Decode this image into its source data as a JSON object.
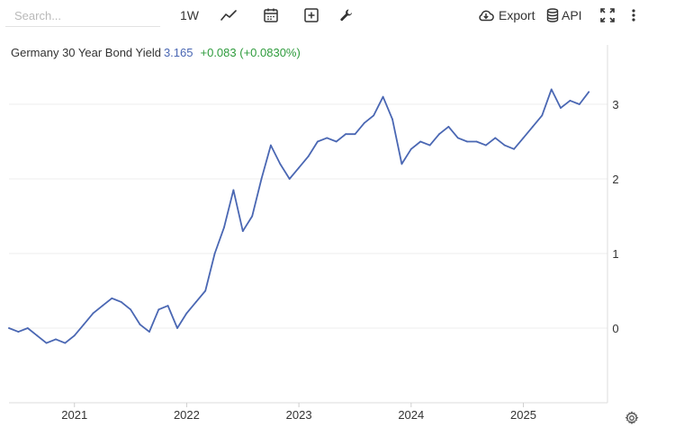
{
  "toolbar": {
    "search_placeholder": "Search...",
    "interval_label": "1W",
    "chart_type_icon": "line-chart-icon",
    "calendar_icon": "calendar-icon",
    "compare_icon": "add-box-icon",
    "settings_icon": "wrench-icon",
    "export_label": "Export",
    "export_icon": "cloud-download-icon",
    "api_label": "API",
    "api_icon": "database-icon",
    "fullscreen_icon": "fullscreen-icon",
    "more_icon": "more-vertical-icon"
  },
  "legend": {
    "name": "Germany 30 Year Bond Yield",
    "value": "3.165",
    "change": "+0.083 (+0.0830%)",
    "value_color": "#4a67b3",
    "change_color": "#2e9b3c"
  },
  "footer": {
    "gear_icon": "gear-icon"
  },
  "chart_data": {
    "type": "line",
    "title": "",
    "xlabel": "",
    "ylabel": "",
    "x_tick_labels": [
      "2021",
      "2022",
      "2023",
      "2024",
      "2025"
    ],
    "y_tick_labels": [
      "0",
      "1",
      "2",
      "3"
    ],
    "ylim": [
      -1,
      3.4
    ],
    "xlim": [
      "2020-06",
      "2025-10"
    ],
    "grid": "horizontal",
    "line_color": "#4a67b3",
    "series": [
      {
        "name": "Germany 30 Year Bond Yield",
        "x": [
          "2020-06",
          "2020-07",
          "2020-08",
          "2020-09",
          "2020-10",
          "2020-11",
          "2020-12",
          "2021-01",
          "2021-02",
          "2021-03",
          "2021-04",
          "2021-05",
          "2021-06",
          "2021-07",
          "2021-08",
          "2021-09",
          "2021-10",
          "2021-11",
          "2021-12",
          "2022-01",
          "2022-02",
          "2022-03",
          "2022-04",
          "2022-05",
          "2022-06",
          "2022-07",
          "2022-08",
          "2022-09",
          "2022-10",
          "2022-11",
          "2022-12",
          "2023-01",
          "2023-02",
          "2023-03",
          "2023-04",
          "2023-05",
          "2023-06",
          "2023-07",
          "2023-08",
          "2023-09",
          "2023-10",
          "2023-11",
          "2023-12",
          "2024-01",
          "2024-02",
          "2024-03",
          "2024-04",
          "2024-05",
          "2024-06",
          "2024-07",
          "2024-08",
          "2024-09",
          "2024-10",
          "2024-11",
          "2024-12",
          "2025-01",
          "2025-02",
          "2025-03",
          "2025-04",
          "2025-05",
          "2025-06",
          "2025-07",
          "2025-08"
        ],
        "values": [
          0.0,
          -0.05,
          0.0,
          -0.1,
          -0.2,
          -0.15,
          -0.2,
          -0.1,
          0.05,
          0.2,
          0.3,
          0.4,
          0.35,
          0.25,
          0.05,
          -0.05,
          0.25,
          0.3,
          0.0,
          0.2,
          0.35,
          0.5,
          1.0,
          1.35,
          1.85,
          1.3,
          1.5,
          2.0,
          2.45,
          2.2,
          2.0,
          2.15,
          2.3,
          2.5,
          2.55,
          2.5,
          2.6,
          2.6,
          2.75,
          2.85,
          3.1,
          2.8,
          2.2,
          2.4,
          2.5,
          2.45,
          2.6,
          2.7,
          2.55,
          2.5,
          2.5,
          2.45,
          2.55,
          2.45,
          2.4,
          2.55,
          2.7,
          2.85,
          3.2,
          2.95,
          3.05,
          3.0,
          3.165
        ]
      }
    ]
  }
}
